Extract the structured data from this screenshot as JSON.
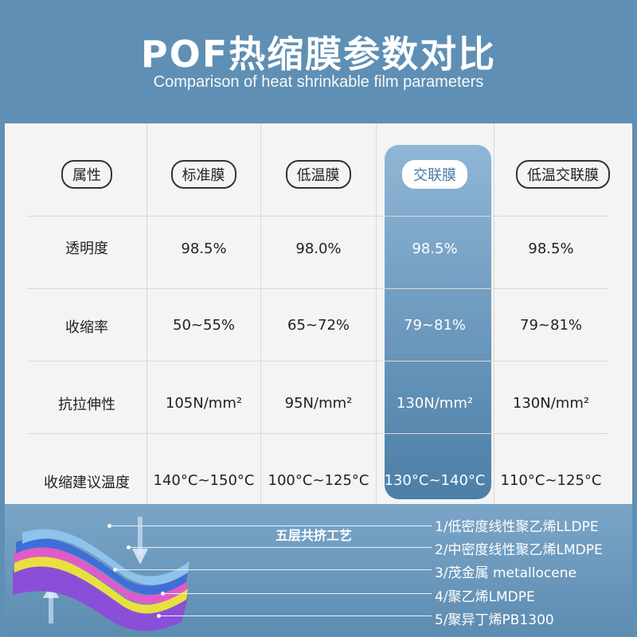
{
  "header": {
    "title": "POF热缩膜参数对比",
    "subtitle": "Comparison of heat shrinkable film parameters"
  },
  "table": {
    "columns": [
      "属性",
      "标准膜",
      "低温膜",
      "交联膜",
      "低温交联膜"
    ],
    "highlight_column": "交联膜",
    "rows": [
      {
        "label": "透明度",
        "values": [
          "98.5%",
          "98.0%",
          "98.5%",
          "98.5%"
        ]
      },
      {
        "label": "收缩率",
        "values": [
          "50~55%",
          "65~72%",
          "79~81%",
          "79~81%"
        ]
      },
      {
        "label": "抗拉伸性",
        "values": [
          "105N/mm²",
          "95N/mm²",
          "130N/mm²",
          "130N/mm²"
        ]
      },
      {
        "label": "收缩建议温度",
        "values": [
          "140°C~150°C",
          "100°C~125°C",
          "130°C~140°C",
          "110°C~125°C"
        ]
      }
    ]
  },
  "process": {
    "title": "五层共挤工艺",
    "layers": [
      "1/低密度线性聚乙烯LLDPE",
      "2/中密度线性聚乙烯LMDPE",
      "3/茂金属 metallocene",
      "4/聚乙烯LMDPE",
      "5/聚异丁烯PB1300"
    ],
    "layer_colors": [
      "#8ec3ec",
      "#3f6fd6",
      "#e05bc9",
      "#e9e040",
      "#8a4fd8"
    ]
  }
}
